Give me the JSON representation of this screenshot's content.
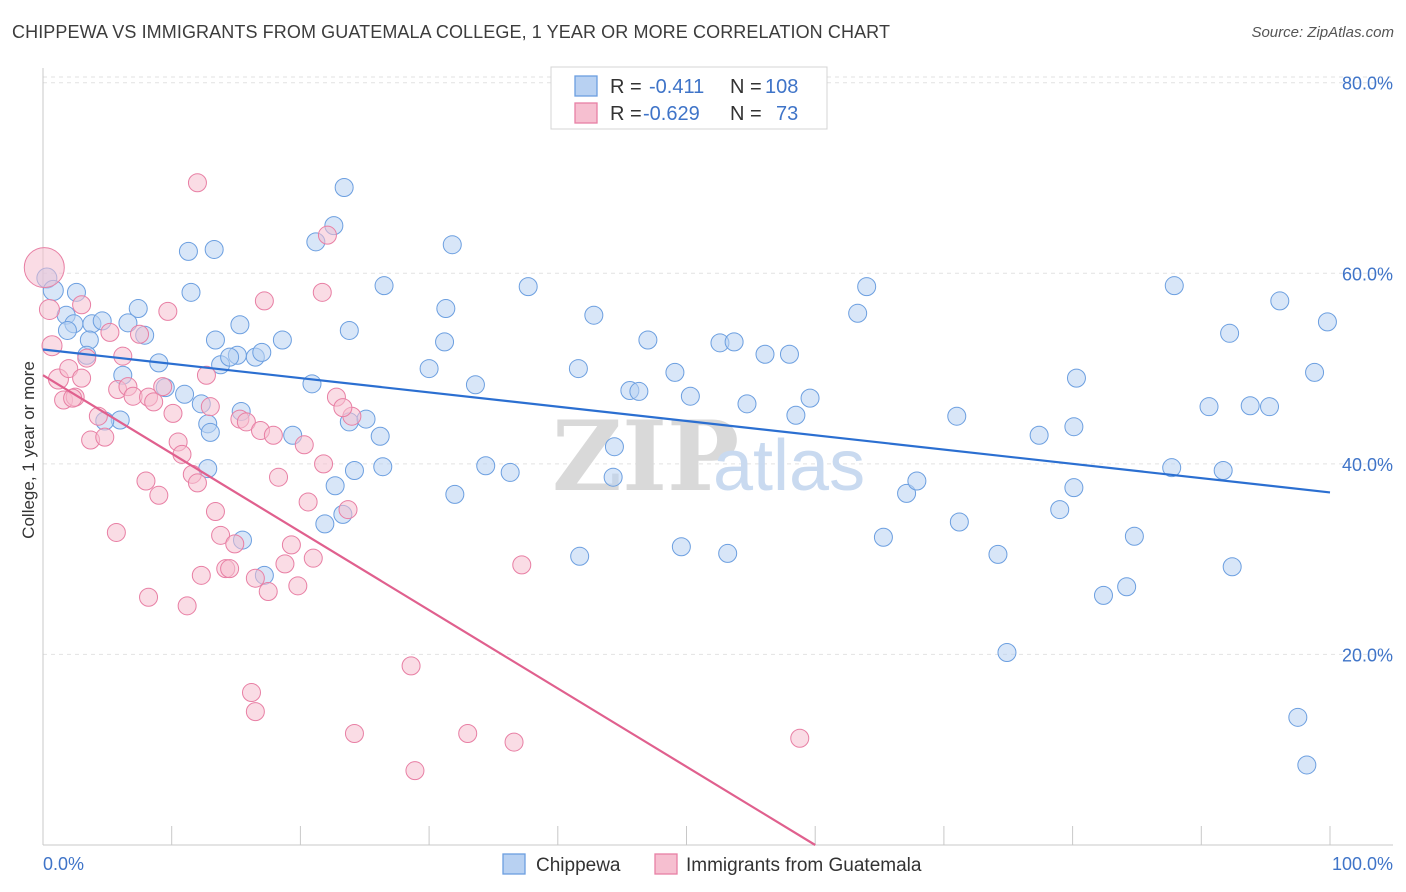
{
  "chart_data": {
    "type": "scatter",
    "title": "CHIPPEWA VS IMMIGRANTS FROM GUATEMALA COLLEGE, 1 YEAR OR MORE CORRELATION CHART",
    "source": "Source: ZipAtlas.com",
    "ylabel": "College, 1 year or more",
    "xlim": [
      0,
      100
    ],
    "ylim": [
      0,
      80
    ],
    "x_tick_labels": [
      "0.0%",
      "100.0%"
    ],
    "y_ticks": [
      20,
      40,
      60,
      80
    ],
    "y_tick_labels": [
      "20.0%",
      "40.0%",
      "60.0%",
      "80.0%"
    ],
    "watermark": {
      "zip": "ZIP",
      "atlas": "atlas"
    },
    "legend": [
      {
        "r_label": "R =",
        "r_value": "-0.411",
        "n_label": "N =",
        "n_value": "108"
      },
      {
        "r_label": "R =",
        "r_value": "-0.629",
        "n_label": "N =",
        "n_value": "73"
      }
    ],
    "series": [
      {
        "name": "Chippewa",
        "color": "#6c9fe0",
        "fill": "#b8d1f2",
        "trend": [
          [
            0,
            52.0
          ],
          [
            100,
            37.0
          ]
        ],
        "points": [
          [
            0.3,
            59.5
          ],
          [
            0.8,
            58.2
          ],
          [
            2.6,
            58.0
          ],
          [
            1.8,
            55.6
          ],
          [
            2.4,
            54.7
          ],
          [
            1.9,
            54.0
          ],
          [
            3.8,
            54.7
          ],
          [
            4.6,
            55.0
          ],
          [
            3.6,
            53.0
          ],
          [
            3.4,
            51.4
          ],
          [
            7.4,
            56.3
          ],
          [
            7.9,
            53.5
          ],
          [
            11.3,
            62.3
          ],
          [
            11.5,
            58.0
          ],
          [
            13.4,
            53.0
          ],
          [
            13.8,
            50.4
          ],
          [
            15.3,
            54.6
          ],
          [
            15.1,
            51.4
          ],
          [
            16.5,
            51.2
          ],
          [
            17.0,
            51.7
          ],
          [
            18.6,
            53.0
          ],
          [
            20.9,
            48.4
          ],
          [
            21.2,
            63.3
          ],
          [
            23.4,
            69.0
          ],
          [
            23.8,
            54.0
          ],
          [
            26.5,
            58.7
          ],
          [
            30.0,
            50.0
          ],
          [
            31.2,
            52.8
          ],
          [
            31.8,
            63.0
          ],
          [
            31.3,
            56.3
          ],
          [
            33.6,
            48.3
          ],
          [
            37.7,
            58.6
          ],
          [
            41.6,
            50.0
          ],
          [
            42.8,
            55.6
          ],
          [
            45.6,
            47.7
          ],
          [
            46.3,
            47.6
          ],
          [
            47.0,
            53.0
          ],
          [
            49.1,
            49.6
          ],
          [
            50.3,
            47.1
          ],
          [
            52.6,
            52.7
          ],
          [
            53.7,
            52.8
          ],
          [
            54.7,
            46.3
          ],
          [
            56.1,
            51.5
          ],
          [
            58.5,
            45.1
          ],
          [
            59.6,
            46.9
          ],
          [
            63.3,
            55.8
          ],
          [
            64.0,
            58.6
          ],
          [
            9.0,
            50.6
          ],
          [
            9.5,
            48.0
          ],
          [
            11.0,
            47.3
          ],
          [
            12.8,
            44.2
          ],
          [
            13.0,
            43.3
          ],
          [
            15.4,
            45.5
          ],
          [
            6.6,
            54.8
          ],
          [
            6.2,
            49.3
          ],
          [
            6.0,
            44.6
          ],
          [
            4.8,
            44.5
          ],
          [
            19.4,
            43.0
          ],
          [
            21.9,
            33.7
          ],
          [
            22.7,
            37.7
          ],
          [
            23.3,
            34.7
          ],
          [
            24.2,
            39.3
          ],
          [
            23.8,
            44.4
          ],
          [
            25.1,
            44.7
          ],
          [
            26.2,
            42.9
          ],
          [
            26.4,
            39.7
          ],
          [
            32.0,
            36.8
          ],
          [
            34.4,
            39.8
          ],
          [
            36.3,
            39.1
          ],
          [
            44.4,
            41.8
          ],
          [
            44.3,
            38.6
          ],
          [
            41.7,
            30.3
          ],
          [
            49.6,
            31.3
          ],
          [
            53.2,
            30.6
          ],
          [
            58.0,
            51.5
          ],
          [
            65.3,
            32.3
          ],
          [
            67.1,
            36.9
          ],
          [
            67.9,
            38.2
          ],
          [
            71.2,
            33.9
          ],
          [
            71.0,
            45.0
          ],
          [
            74.2,
            30.5
          ],
          [
            74.9,
            20.2
          ],
          [
            77.4,
            43.0
          ],
          [
            79.0,
            35.2
          ],
          [
            80.1,
            37.5
          ],
          [
            80.3,
            49.0
          ],
          [
            80.1,
            43.9
          ],
          [
            82.4,
            26.2
          ],
          [
            84.2,
            27.1
          ],
          [
            84.8,
            32.4
          ],
          [
            87.7,
            39.6
          ],
          [
            87.9,
            58.7
          ],
          [
            90.6,
            46.0
          ],
          [
            91.7,
            39.3
          ],
          [
            92.2,
            53.7
          ],
          [
            92.4,
            29.2
          ],
          [
            93.8,
            46.1
          ],
          [
            95.3,
            46.0
          ],
          [
            96.1,
            57.1
          ],
          [
            97.5,
            13.4
          ],
          [
            98.8,
            49.6
          ],
          [
            98.2,
            8.4
          ],
          [
            99.8,
            54.9
          ],
          [
            12.8,
            39.5
          ],
          [
            13.3,
            62.5
          ],
          [
            22.6,
            65.0
          ],
          [
            14.5,
            51.2
          ],
          [
            12.3,
            46.3
          ],
          [
            17.2,
            28.3
          ],
          [
            15.5,
            32.0
          ]
        ]
      },
      {
        "name": "Immigrants from Guatemala",
        "color": "#e87fa4",
        "fill": "#f6bfd0",
        "trend": [
          [
            0,
            49.3
          ],
          [
            60,
            0
          ]
        ],
        "points": [
          [
            0.1,
            60.6
          ],
          [
            0.5,
            56.2
          ],
          [
            0.7,
            52.4
          ],
          [
            1.2,
            48.9
          ],
          [
            1.6,
            46.7
          ],
          [
            2.0,
            50.0
          ],
          [
            2.5,
            47.0
          ],
          [
            2.3,
            46.9
          ],
          [
            3.0,
            49.0
          ],
          [
            3.4,
            51.1
          ],
          [
            3.7,
            42.5
          ],
          [
            4.3,
            45.0
          ],
          [
            4.8,
            42.8
          ],
          [
            5.2,
            53.8
          ],
          [
            5.8,
            47.8
          ],
          [
            6.2,
            51.3
          ],
          [
            6.6,
            48.1
          ],
          [
            7.0,
            47.1
          ],
          [
            7.5,
            53.6
          ],
          [
            8.0,
            38.2
          ],
          [
            8.2,
            47.0
          ],
          [
            8.6,
            46.5
          ],
          [
            9.0,
            36.7
          ],
          [
            9.3,
            48.1
          ],
          [
            9.7,
            56.0
          ],
          [
            10.1,
            45.3
          ],
          [
            10.5,
            42.3
          ],
          [
            10.8,
            41.0
          ],
          [
            11.2,
            25.1
          ],
          [
            11.6,
            38.9
          ],
          [
            12.0,
            69.5
          ],
          [
            12.3,
            28.3
          ],
          [
            12.7,
            49.3
          ],
          [
            13.0,
            46.0
          ],
          [
            13.4,
            35.0
          ],
          [
            13.8,
            32.5
          ],
          [
            14.2,
            29.0
          ],
          [
            14.5,
            29.0
          ],
          [
            14.9,
            31.6
          ],
          [
            15.3,
            44.7
          ],
          [
            15.8,
            44.4
          ],
          [
            16.2,
            16.0
          ],
          [
            16.5,
            28.0
          ],
          [
            16.9,
            43.5
          ],
          [
            17.2,
            57.1
          ],
          [
            17.5,
            26.6
          ],
          [
            17.9,
            43.0
          ],
          [
            18.3,
            38.6
          ],
          [
            18.8,
            29.5
          ],
          [
            19.3,
            31.5
          ],
          [
            19.8,
            27.2
          ],
          [
            20.3,
            42.0
          ],
          [
            20.6,
            36.0
          ],
          [
            21.0,
            30.1
          ],
          [
            21.8,
            40.0
          ],
          [
            22.1,
            64.0
          ],
          [
            22.8,
            47.0
          ],
          [
            23.7,
            35.2
          ],
          [
            24.0,
            45.0
          ],
          [
            24.2,
            11.7
          ],
          [
            28.6,
            18.8
          ],
          [
            28.9,
            7.8
          ],
          [
            33.0,
            11.7
          ],
          [
            36.6,
            10.8
          ],
          [
            37.2,
            29.4
          ],
          [
            58.8,
            11.2
          ],
          [
            21.7,
            58.0
          ],
          [
            23.3,
            45.9
          ],
          [
            3.0,
            56.7
          ],
          [
            12.0,
            38.0
          ],
          [
            5.7,
            32.8
          ],
          [
            8.2,
            26.0
          ],
          [
            16.5,
            14.0
          ]
        ]
      }
    ]
  }
}
